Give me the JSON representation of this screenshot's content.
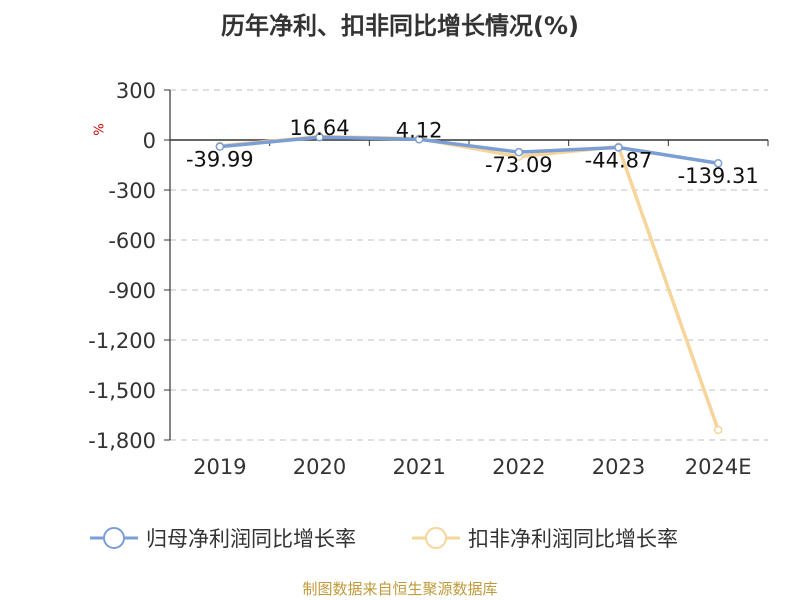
{
  "title": "历年净利、扣非同比增长情况(%)",
  "source": "制图数据来自恒生聚源数据库",
  "chart_data": {
    "type": "line",
    "title": "历年净利、扣非同比增长情况(%)",
    "ylabel": "%",
    "categories": [
      "2019",
      "2020",
      "2021",
      "2022",
      "2023",
      "2024E"
    ],
    "ylim": [
      -1800,
      300
    ],
    "yticks": [
      300,
      0,
      -300,
      -600,
      -900,
      -1200,
      -1500,
      -1800
    ],
    "ytick_labels": [
      "300",
      "0",
      "-300",
      "-600",
      "-900",
      "-1,200",
      "-1,500",
      "-1,800"
    ],
    "grid": true,
    "legend_position": "bottom",
    "series": [
      {
        "name": "归母净利润同比增长率",
        "color": "#7b9ed4",
        "values": [
          -39.99,
          16.64,
          4.12,
          -73.09,
          -44.87,
          -139.31
        ],
        "labels": [
          "-39.99",
          "16.64",
          "4.12",
          "-73.09",
          "-44.87",
          "-139.31"
        ]
      },
      {
        "name": "扣非净利润同比增长率",
        "color": "#f6d59a",
        "values": [
          -35,
          20,
          8,
          -100,
          -40,
          -1740
        ]
      }
    ]
  }
}
